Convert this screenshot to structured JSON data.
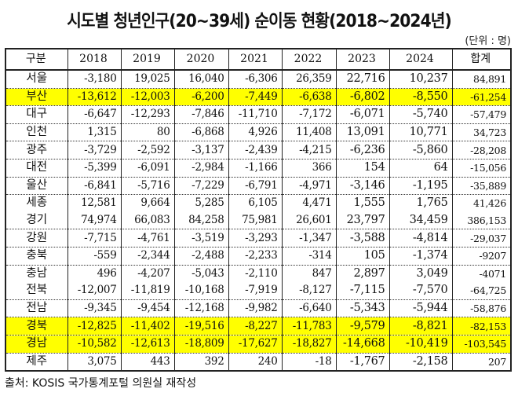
{
  "title": "시도별 청년인구(20~39세) 순이동 현황(2018~2024년)",
  "unit": "(단위 : 명)",
  "highlight_color": "#ffff00",
  "table": {
    "headers": [
      "구분",
      "2018",
      "2019",
      "2020",
      "2021",
      "2022",
      "2023",
      "2024",
      "합계"
    ],
    "rows": [
      {
        "region": "서울",
        "values": [
          "-3,180",
          "19,025",
          "16,040",
          "-6,306",
          "26,359",
          "22,716",
          "10,237",
          "84,891"
        ],
        "highlight": false
      },
      {
        "region": "부산",
        "values": [
          "-13,612",
          "-12,003",
          "-6,200",
          "-7,449",
          "-6,638",
          "-6,802",
          "-8,550",
          "-61,254"
        ],
        "highlight": true
      },
      {
        "region": "대구",
        "values": [
          "-6,647",
          "-12,293",
          "-7,846",
          "-11,710",
          "-7,172",
          "-6,071",
          "-5,740",
          "-57,479"
        ],
        "highlight": false
      },
      {
        "region": "인천",
        "values": [
          "1,315",
          "80",
          "-6,868",
          "4,926",
          "11,408",
          "13,091",
          "10,771",
          "34,723"
        ],
        "highlight": false
      },
      {
        "region": "광주",
        "values": [
          "-3,729",
          "-2,592",
          "-3,137",
          "-2,439",
          "-4,215",
          "-6,236",
          "-5,860",
          "-28,208"
        ],
        "highlight": false
      },
      {
        "region": "대전",
        "values": [
          "-5,399",
          "-6,091",
          "-2,984",
          "-1,166",
          "366",
          "154",
          "64",
          "-15,056"
        ],
        "highlight": false
      },
      {
        "region": "울산",
        "values": [
          "-6,841",
          "-5,716",
          "-7,229",
          "-6,791",
          "-4,971",
          "-3,146",
          "-1,195",
          "-35,889"
        ],
        "highlight": false
      },
      {
        "region": "세종",
        "values": [
          "12,581",
          "9,664",
          "5,285",
          "6,105",
          "4,471",
          "1,555",
          "1,765",
          "41,426"
        ],
        "highlight": false
      },
      {
        "region": "경기",
        "values": [
          "74,974",
          "66,083",
          "84,258",
          "75,981",
          "26,601",
          "23,797",
          "34,459",
          "386,153"
        ],
        "highlight": false
      },
      {
        "region": "강원",
        "values": [
          "-7,715",
          "-4,761",
          "-3,519",
          "-3,293",
          "-1,347",
          "-3,588",
          "-4,814",
          "-29,037"
        ],
        "highlight": false
      },
      {
        "region": "충북",
        "values": [
          "-559",
          "-2,344",
          "-2,488",
          "-2,233",
          "-314",
          "105",
          "-1,374",
          "-9207"
        ],
        "highlight": false
      },
      {
        "region": "충남",
        "values": [
          "496",
          "-4,207",
          "-5,043",
          "-2,110",
          "847",
          "2,897",
          "3,049",
          "-4071"
        ],
        "highlight": false
      },
      {
        "region": "전북",
        "values": [
          "-12,007",
          "-11,819",
          "-10,168",
          "-7,919",
          "-8,127",
          "-7,115",
          "-7,570",
          "-64,725"
        ],
        "highlight": false
      },
      {
        "region": "전남",
        "values": [
          "-9,345",
          "-9,454",
          "-12,168",
          "-9,982",
          "-6,640",
          "-5,343",
          "-5,944",
          "-58,876"
        ],
        "highlight": false
      },
      {
        "region": "경북",
        "values": [
          "-12,825",
          "-11,402",
          "-19,516",
          "-8,227",
          "-11,783",
          "-9,579",
          "-8,821",
          "-82,153"
        ],
        "highlight": true
      },
      {
        "region": "경남",
        "values": [
          "-10,582",
          "-12,613",
          "-18,809",
          "-17,627",
          "-18,827",
          "-14,668",
          "-10,419",
          "-103,545"
        ],
        "highlight": true
      },
      {
        "region": "제주",
        "values": [
          "3,075",
          "443",
          "392",
          "240",
          "-18",
          "-1,767",
          "-2,158",
          "207"
        ],
        "highlight": false
      }
    ]
  },
  "source": "출처: KOSIS 국가통계포털 의원실 재작성"
}
